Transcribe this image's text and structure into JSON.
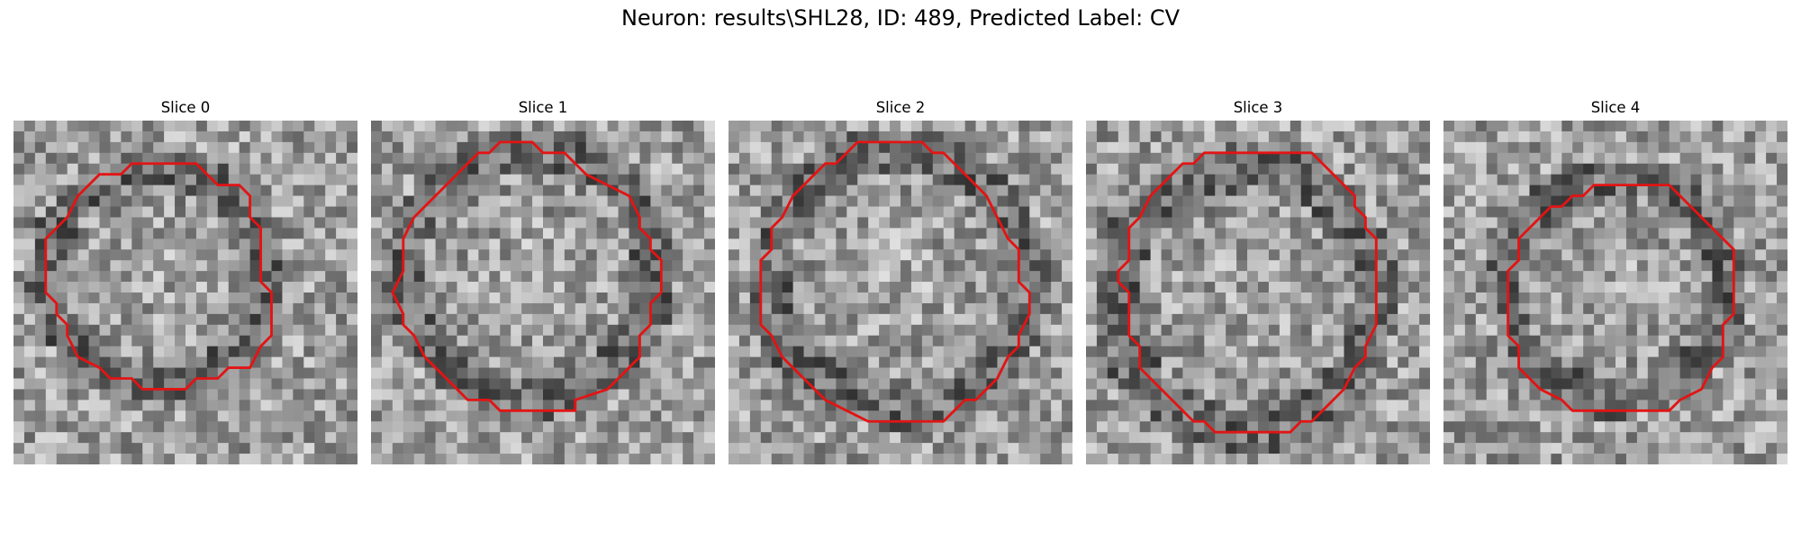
{
  "figure": {
    "title": "Neuron: results\\SHL28, ID: 489, Predicted Label: CV",
    "contour_color": "#e21414"
  },
  "slices": [
    {
      "title": "Slice 0",
      "contour": [
        [
          12,
          4
        ],
        [
          17,
          4
        ],
        [
          18,
          5
        ],
        [
          19,
          6
        ],
        [
          21,
          6
        ],
        [
          22,
          7
        ],
        [
          22,
          9
        ],
        [
          23,
          10
        ],
        [
          23,
          15
        ],
        [
          24,
          16
        ],
        [
          24,
          20
        ],
        [
          23,
          21
        ],
        [
          22,
          23
        ],
        [
          20,
          23
        ],
        [
          19,
          24
        ],
        [
          17,
          24
        ],
        [
          16,
          25
        ],
        [
          12,
          25
        ],
        [
          11,
          24
        ],
        [
          9,
          24
        ],
        [
          8,
          23
        ],
        [
          6,
          22
        ],
        [
          5,
          20
        ],
        [
          5,
          19
        ],
        [
          4,
          18
        ],
        [
          4,
          17
        ],
        [
          3,
          16
        ],
        [
          3,
          11
        ],
        [
          4,
          10
        ],
        [
          5,
          9
        ],
        [
          6,
          7
        ],
        [
          7,
          6
        ],
        [
          8,
          5
        ],
        [
          10,
          5
        ],
        [
          11,
          4
        ]
      ]
    },
    {
      "title": "Slice 1",
      "contour": [
        [
          12,
          2
        ],
        [
          15,
          2
        ],
        [
          16,
          3
        ],
        [
          18,
          3
        ],
        [
          19,
          4
        ],
        [
          20,
          5
        ],
        [
          22,
          6
        ],
        [
          24,
          7
        ],
        [
          25,
          9
        ],
        [
          25,
          10
        ],
        [
          26,
          11
        ],
        [
          26,
          12
        ],
        [
          27,
          13
        ],
        [
          27,
          16
        ],
        [
          26,
          17
        ],
        [
          26,
          19
        ],
        [
          25,
          20
        ],
        [
          25,
          22
        ],
        [
          24,
          23
        ],
        [
          23,
          24
        ],
        [
          22,
          25
        ],
        [
          19,
          26
        ],
        [
          19,
          27
        ],
        [
          12,
          27
        ],
        [
          11,
          26
        ],
        [
          9,
          26
        ],
        [
          8,
          25
        ],
        [
          7,
          24
        ],
        [
          6,
          23
        ],
        [
          5,
          22
        ],
        [
          4,
          20
        ],
        [
          3,
          19
        ],
        [
          3,
          18
        ],
        [
          2,
          16
        ],
        [
          3,
          14
        ],
        [
          3,
          11
        ],
        [
          4,
          9
        ],
        [
          5,
          8
        ],
        [
          6,
          7
        ],
        [
          7,
          6
        ],
        [
          8,
          5
        ],
        [
          9,
          4
        ],
        [
          10,
          3
        ],
        [
          11,
          3
        ]
      ]
    },
    {
      "title": "Slice 2",
      "contour": [
        [
          12,
          2
        ],
        [
          18,
          2
        ],
        [
          19,
          3
        ],
        [
          20,
          3
        ],
        [
          21,
          4
        ],
        [
          22,
          5
        ],
        [
          23,
          6
        ],
        [
          24,
          7
        ],
        [
          25,
          9
        ],
        [
          26,
          11
        ],
        [
          27,
          12
        ],
        [
          27,
          15
        ],
        [
          28,
          16
        ],
        [
          28,
          18
        ],
        [
          27,
          20
        ],
        [
          27,
          21
        ],
        [
          26,
          22
        ],
        [
          25,
          24
        ],
        [
          24,
          25
        ],
        [
          23,
          26
        ],
        [
          22,
          26
        ],
        [
          21,
          27
        ],
        [
          20,
          28
        ],
        [
          13,
          28
        ],
        [
          11,
          27
        ],
        [
          9,
          26
        ],
        [
          8,
          25
        ],
        [
          7,
          24
        ],
        [
          6,
          23
        ],
        [
          5,
          22
        ],
        [
          4,
          20
        ],
        [
          3,
          19
        ],
        [
          3,
          13
        ],
        [
          4,
          12
        ],
        [
          4,
          10
        ],
        [
          5,
          9
        ],
        [
          6,
          7
        ],
        [
          7,
          6
        ],
        [
          8,
          5
        ],
        [
          9,
          4
        ],
        [
          10,
          4
        ],
        [
          11,
          3
        ]
      ]
    },
    {
      "title": "Slice 3",
      "contour": [
        [
          11,
          3
        ],
        [
          21,
          3
        ],
        [
          22,
          4
        ],
        [
          23,
          5
        ],
        [
          24,
          6
        ],
        [
          25,
          7
        ],
        [
          25,
          8
        ],
        [
          26,
          9
        ],
        [
          26,
          10
        ],
        [
          27,
          11
        ],
        [
          27,
          19
        ],
        [
          26,
          21
        ],
        [
          26,
          22
        ],
        [
          25,
          23
        ],
        [
          24,
          25
        ],
        [
          23,
          26
        ],
        [
          22,
          27
        ],
        [
          21,
          28
        ],
        [
          20,
          28
        ],
        [
          19,
          29
        ],
        [
          18,
          29
        ],
        [
          12,
          29
        ],
        [
          11,
          28
        ],
        [
          10,
          28
        ],
        [
          9,
          27
        ],
        [
          8,
          26
        ],
        [
          7,
          25
        ],
        [
          6,
          24
        ],
        [
          5,
          23
        ],
        [
          5,
          21
        ],
        [
          4,
          20
        ],
        [
          4,
          16
        ],
        [
          3,
          15
        ],
        [
          3,
          14
        ],
        [
          4,
          13
        ],
        [
          4,
          10
        ],
        [
          5,
          9
        ],
        [
          6,
          7
        ],
        [
          7,
          6
        ],
        [
          8,
          5
        ],
        [
          9,
          4
        ],
        [
          10,
          4
        ]
      ]
    },
    {
      "title": "Slice 4",
      "contour": [
        [
          14,
          6
        ],
        [
          21,
          6
        ],
        [
          22,
          7
        ],
        [
          23,
          8
        ],
        [
          24,
          9
        ],
        [
          25,
          10
        ],
        [
          26,
          11
        ],
        [
          27,
          12
        ],
        [
          27,
          18
        ],
        [
          26,
          19
        ],
        [
          26,
          22
        ],
        [
          25,
          23
        ],
        [
          24,
          25
        ],
        [
          22,
          26
        ],
        [
          21,
          27
        ],
        [
          12,
          27
        ],
        [
          11,
          26
        ],
        [
          9,
          25
        ],
        [
          8,
          24
        ],
        [
          7,
          23
        ],
        [
          7,
          21
        ],
        [
          6,
          20
        ],
        [
          6,
          14
        ],
        [
          7,
          13
        ],
        [
          7,
          11
        ],
        [
          8,
          10
        ],
        [
          9,
          9
        ],
        [
          10,
          8
        ],
        [
          11,
          8
        ],
        [
          12,
          7
        ],
        [
          13,
          7
        ]
      ]
    }
  ]
}
